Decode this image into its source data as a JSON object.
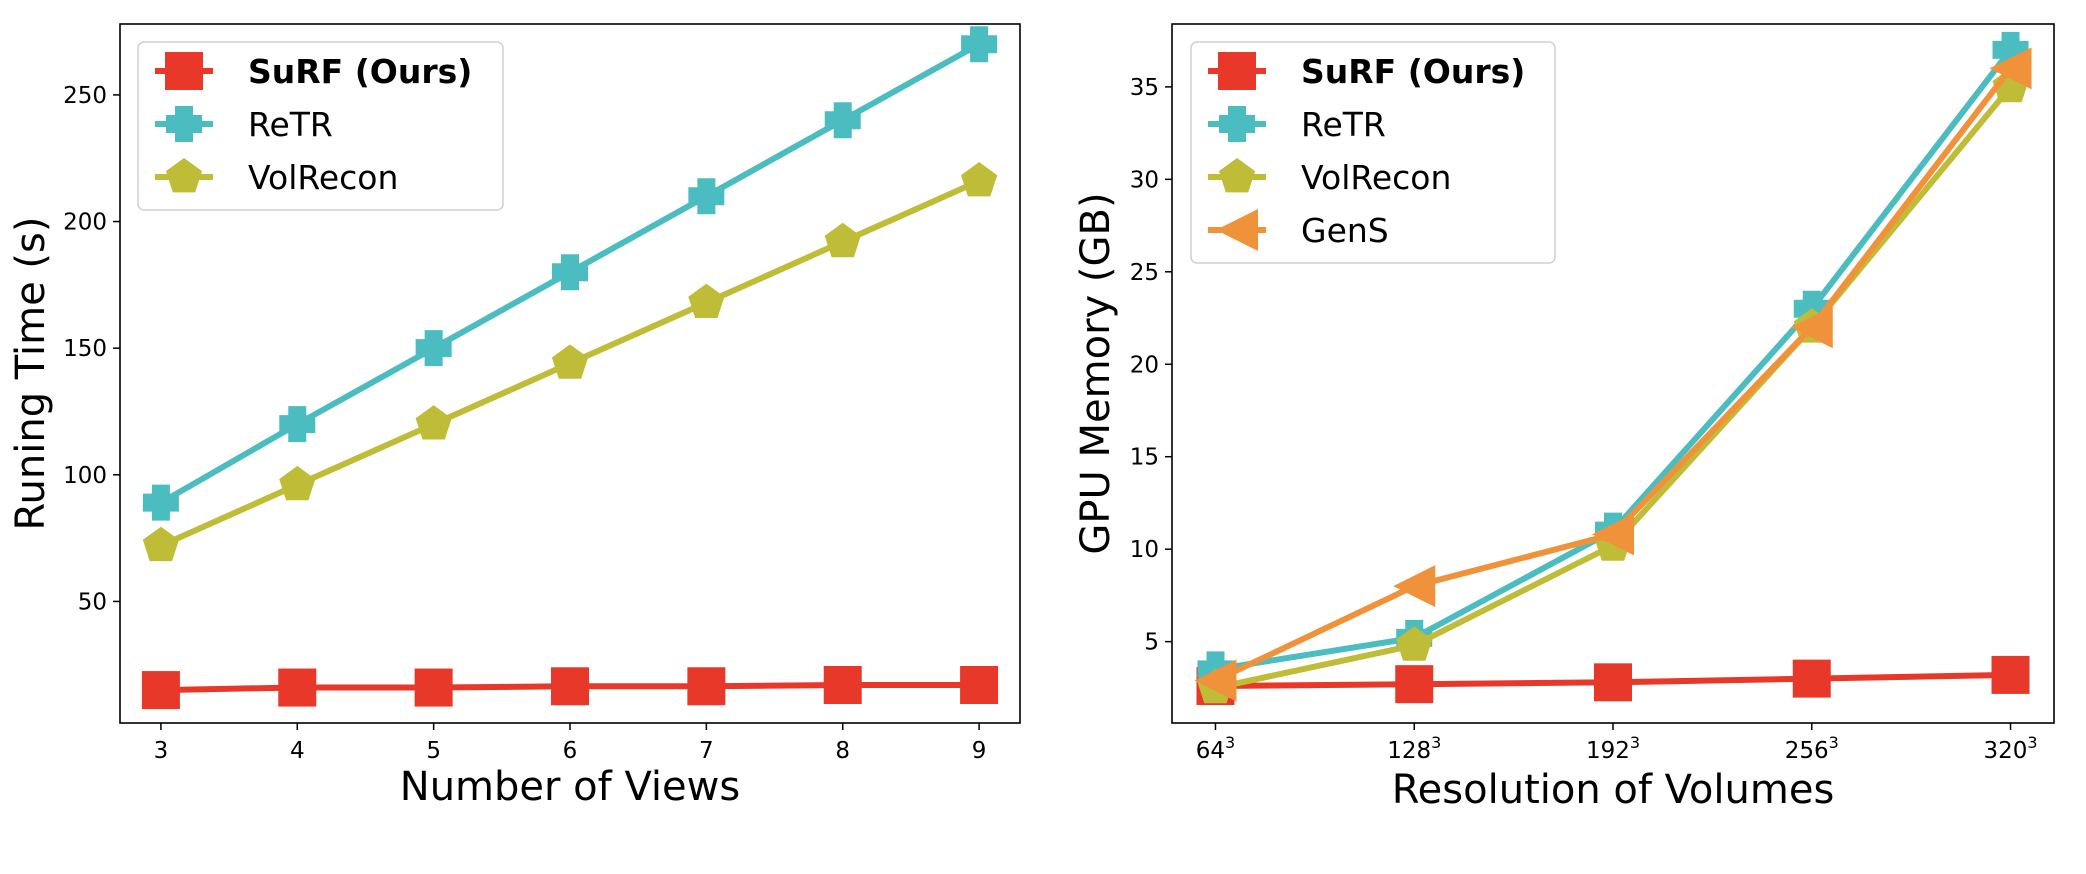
{
  "chart_data": [
    {
      "type": "line",
      "xlabel": "Number of Views",
      "ylabel": "Runing Time (s)",
      "x": [
        3,
        4,
        5,
        6,
        7,
        8,
        9
      ],
      "xlim": [
        2.7,
        9.3
      ],
      "ylim": [
        2,
        278
      ],
      "yticks": [
        "50",
        "100",
        "150",
        "200",
        "250"
      ],
      "xticks": [
        "3",
        "4",
        "5",
        "6",
        "7",
        "8",
        "9"
      ],
      "grid": false,
      "legend_position": "top-left",
      "series": [
        {
          "name": "SuRF (Ours)",
          "color": "#e8382a",
          "marker": "square",
          "bold": true,
          "values": [
            15,
            16,
            16,
            16.5,
            16.5,
            17,
            17
          ]
        },
        {
          "name": "ReTR",
          "color": "#4bbdc0",
          "marker": "plus",
          "values": [
            89,
            120,
            150,
            180,
            210,
            240,
            270
          ]
        },
        {
          "name": "VolRecon",
          "color": "#bfbd37",
          "marker": "pentagon",
          "values": [
            72,
            96,
            120,
            144,
            168,
            192,
            216
          ]
        }
      ]
    },
    {
      "type": "line",
      "xlabel": "Resolution of Volumes",
      "ylabel": "GPU Memory (GB)",
      "x": [
        64,
        128,
        192,
        256,
        320
      ],
      "xtick_labels": [
        {
          "base": "64",
          "exp": "3"
        },
        {
          "base": "128",
          "exp": "3"
        },
        {
          "base": "192",
          "exp": "3"
        },
        {
          "base": "256",
          "exp": "3"
        },
        {
          "base": "320",
          "exp": "3"
        }
      ],
      "xlim": [
        50,
        334
      ],
      "ylim": [
        0.6,
        38.4
      ],
      "yticks": [
        "5",
        "10",
        "15",
        "20",
        "25",
        "30",
        "35"
      ],
      "grid": false,
      "legend_position": "top-left",
      "series": [
        {
          "name": "SuRF (Ours)",
          "color": "#e8382a",
          "marker": "square",
          "bold": true,
          "values": [
            2.6,
            2.7,
            2.8,
            3.0,
            3.2
          ]
        },
        {
          "name": "ReTR",
          "color": "#4bbdc0",
          "marker": "plus",
          "values": [
            3.5,
            5.2,
            11.0,
            23.0,
            37.0
          ]
        },
        {
          "name": "VolRecon",
          "color": "#bfbd37",
          "marker": "pentagon",
          "values": [
            2.5,
            4.8,
            10.2,
            22.0,
            35.0
          ]
        },
        {
          "name": "GenS",
          "color": "#f0923a",
          "marker": "triangle-left",
          "values": [
            2.9,
            8.0,
            10.8,
            22.0,
            36.0
          ]
        }
      ]
    }
  ]
}
